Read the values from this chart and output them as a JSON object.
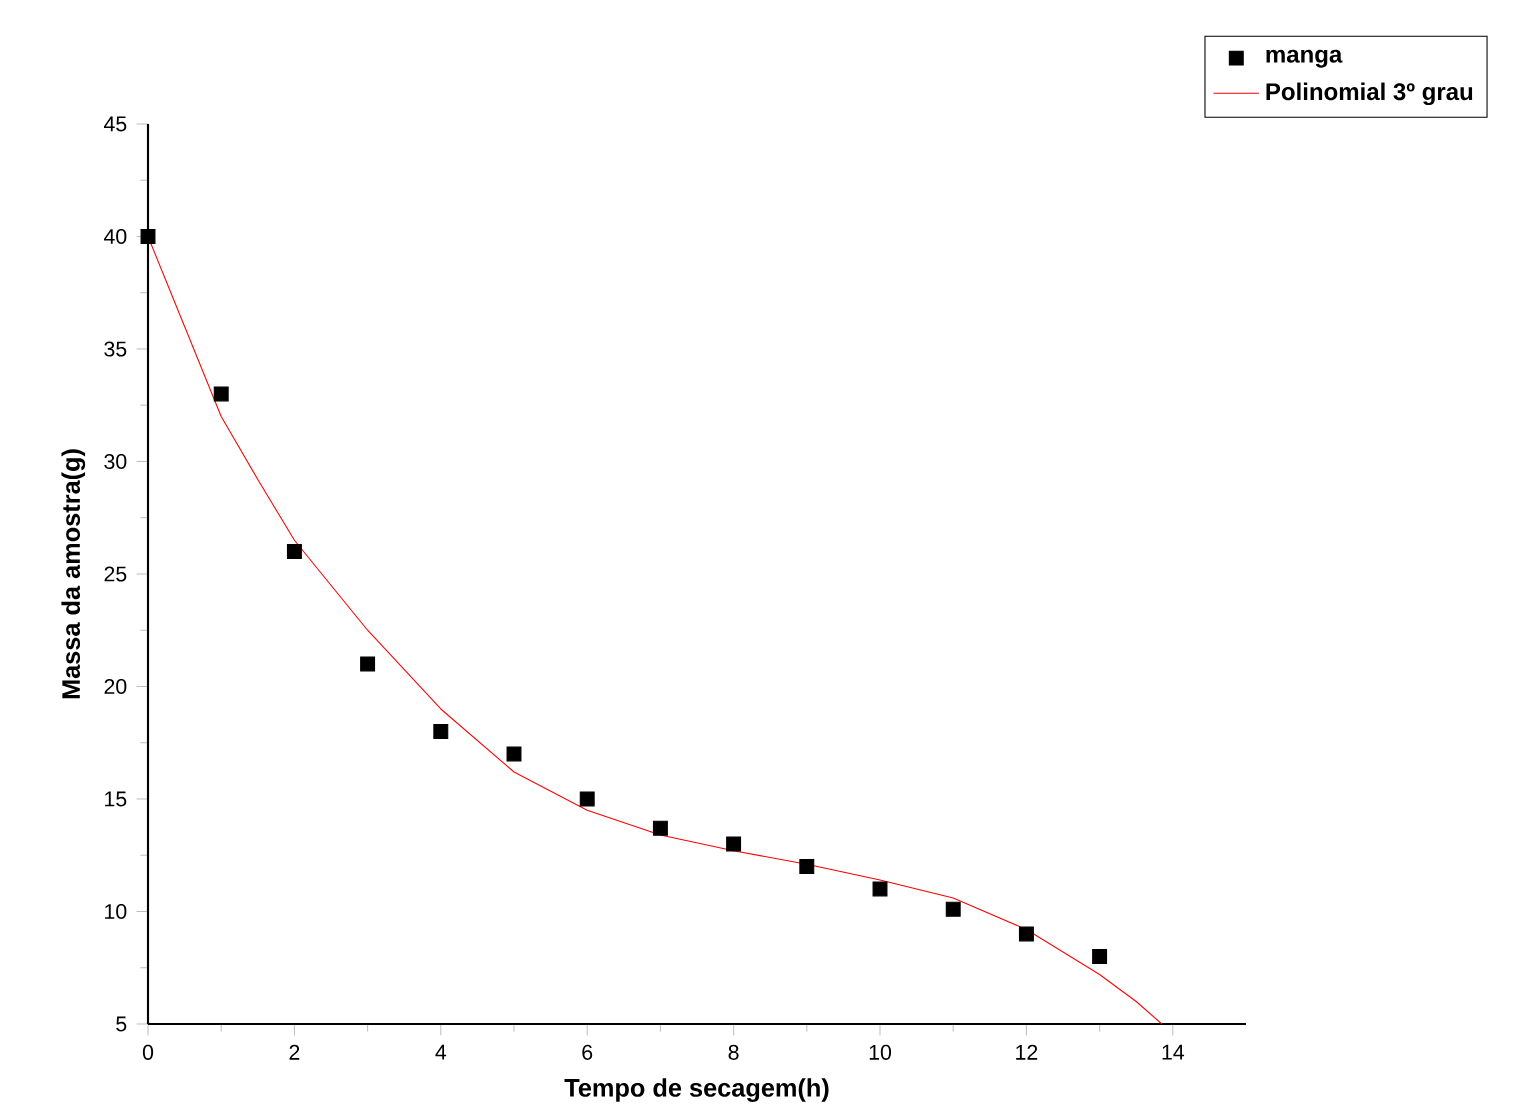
{
  "chart_data": {
    "type": "scatter",
    "xlabel": "Tempo de secagem(h)",
    "ylabel": "Massa da amostra(g)",
    "xlim": [
      0,
      15
    ],
    "ylim": [
      5,
      45
    ],
    "xticks": [
      0,
      2,
      4,
      6,
      8,
      10,
      12,
      14
    ],
    "yticks": [
      5,
      10,
      15,
      20,
      25,
      30,
      35,
      40,
      45
    ],
    "legend": "top right",
    "series": [
      {
        "name": "manga",
        "marker": "square",
        "color": "#000000",
        "x": [
          0,
          1,
          2,
          3,
          4,
          5,
          6,
          7,
          8,
          9,
          10,
          11,
          12,
          13
        ],
        "values": [
          40,
          33,
          26,
          21,
          18,
          17,
          15,
          13.7,
          13,
          12,
          11,
          10.1,
          9,
          8
        ]
      },
      {
        "name": "Polinomial 3º grau",
        "type": "line",
        "marker": "none",
        "color": "#ff0000",
        "x": [
          0,
          0.5,
          1,
          1.5,
          2,
          3,
          4,
          5,
          6,
          7,
          8,
          9,
          10,
          11,
          12,
          13,
          13.5,
          13.85
        ],
        "values": [
          40,
          36,
          32,
          29.2,
          26.5,
          22.5,
          19,
          16.2,
          14.5,
          13.4,
          12.7,
          12.1,
          11.4,
          10.6,
          9.2,
          7.2,
          6,
          5
        ]
      }
    ]
  }
}
